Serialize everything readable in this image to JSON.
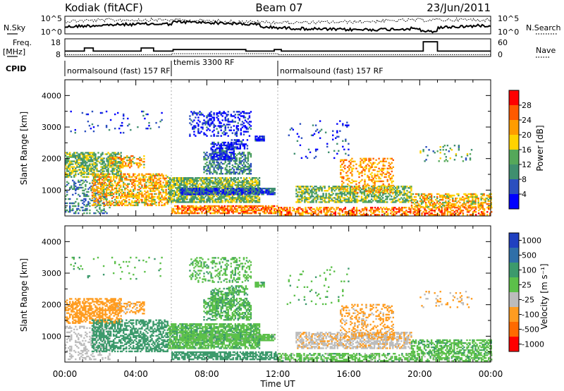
{
  "header": {
    "station": "Kodiak (fitACF)",
    "beam": "Beam 07",
    "date": "23/Jun/2011"
  },
  "noise_panel": {
    "left_label": "N.Sky",
    "right_label": "N.Search",
    "left_ticks": [
      "10^5",
      "10^0"
    ],
    "right_ticks": [
      "10^5",
      "10^0"
    ]
  },
  "freq_panel": {
    "left_label": "Freq.",
    "left_unit": "[MHz]",
    "right_label": "Nave",
    "left_ticks": [
      "18",
      "8"
    ],
    "right_ticks": [
      "60",
      "0"
    ],
    "freq_steps": [
      [
        0,
        11
      ],
      [
        1.1,
        13
      ],
      [
        1.6,
        11
      ],
      [
        4.3,
        13
      ],
      [
        5.0,
        11
      ],
      [
        6.1,
        12
      ],
      [
        10.2,
        11
      ],
      [
        11.8,
        12
      ],
      [
        12.2,
        11
      ],
      [
        15.0,
        11
      ],
      [
        20.2,
        17
      ],
      [
        21.0,
        11
      ],
      [
        24,
        11
      ]
    ],
    "nave_steps": [
      [
        0,
        4
      ],
      [
        6.0,
        8
      ],
      [
        12.0,
        4
      ],
      [
        24,
        4
      ]
    ]
  },
  "cpid": {
    "label": "CPID",
    "segments": [
      {
        "start": 0,
        "end": 6,
        "name": "normalsound (fast) 157 RF"
      },
      {
        "start": 6,
        "end": 12,
        "name": "themis 3300 RF"
      },
      {
        "start": 12,
        "end": 24,
        "name": "normalsound (fast) 157 RF"
      }
    ]
  },
  "colors": {
    "power": [
      "#0000ff",
      "#2b4fbf",
      "#3f8f6f",
      "#55a85a",
      "#ffd200",
      "#ff9c00",
      "#ff5a00",
      "#ff0000"
    ],
    "velocity": [
      "#2040c0",
      "#2f6fa8",
      "#3c9a6c",
      "#5cc04a",
      "#bcbcbc",
      "#ff9c20",
      "#ff6a00",
      "#ff0000"
    ]
  },
  "chart_data": [
    {
      "type": "heatmap",
      "xlabel": "",
      "ylabel": "Slant Range [km]",
      "colorbar_label": "Power [dB]",
      "colorbar_ticks": [
        "28",
        "24",
        "20",
        "16",
        "12",
        "8",
        "4"
      ],
      "colorbar_range": [
        0,
        32
      ],
      "x_range_ut_hours": [
        0,
        24
      ],
      "y_range_km": [
        180,
        4500
      ],
      "y_ticks": [
        "1000",
        "2000",
        "3000",
        "4000"
      ]
    },
    {
      "type": "heatmap",
      "xlabel": "Time UT",
      "ylabel": "Slant Range [km]",
      "colorbar_label": "Velocity [m s⁻¹]",
      "colorbar_ticks": [
        "1000",
        "500",
        "100",
        "25",
        "-25",
        "-100",
        "-500",
        "-1000"
      ],
      "x_range_ut_hours": [
        0,
        24
      ],
      "y_range_km": [
        180,
        4500
      ],
      "y_ticks": [
        "1000",
        "2000",
        "3000",
        "4000"
      ],
      "x_ticks": [
        "00:00",
        "04:00",
        "08:00",
        "12:00",
        "16:00",
        "20:00",
        "00:00"
      ]
    }
  ],
  "scatter_regions": [
    {
      "t0": 0.0,
      "t1": 3.2,
      "r0": 1400,
      "r1": 2200,
      "density": 0.6,
      "power": 14,
      "vel": -250
    },
    {
      "t0": 0.0,
      "t1": 2.5,
      "r0": 250,
      "r1": 1300,
      "density": 0.28,
      "power": 10,
      "vel": -60
    },
    {
      "t0": 1.5,
      "t1": 5.8,
      "r0": 500,
      "r1": 1500,
      "density": 0.55,
      "power": 20,
      "vel": 60
    },
    {
      "t0": 2.5,
      "t1": 4.5,
      "r0": 1700,
      "r1": 2100,
      "density": 0.4,
      "power": 20,
      "vel": -150
    },
    {
      "t0": 5.8,
      "t1": 11.0,
      "r0": 600,
      "r1": 1400,
      "density": 0.75,
      "power": 14,
      "vel": 10
    },
    {
      "t0": 6.5,
      "t1": 11.8,
      "r0": 850,
      "r1": 1050,
      "density": 0.85,
      "power": 6,
      "vel": 0
    },
    {
      "t0": 7.8,
      "t1": 10.5,
      "r0": 1500,
      "r1": 2200,
      "density": 0.55,
      "power": 10,
      "vel": 20
    },
    {
      "t0": 8.2,
      "t1": 9.5,
      "r0": 1950,
      "r1": 2500,
      "density": 0.6,
      "power": 4,
      "vel": 20
    },
    {
      "t0": 9.2,
      "t1": 10.3,
      "r0": 2300,
      "r1": 2600,
      "density": 0.5,
      "power": 3,
      "vel": 10
    },
    {
      "t0": 7.0,
      "t1": 10.5,
      "r0": 2700,
      "r1": 3500,
      "density": 0.3,
      "power": 3,
      "vel": 5
    },
    {
      "t0": 10.7,
      "t1": 11.2,
      "r0": 2550,
      "r1": 2700,
      "density": 0.9,
      "power": 3,
      "vel": 10
    },
    {
      "t0": 6.0,
      "t1": 12.0,
      "r0": 250,
      "r1": 500,
      "density": 0.7,
      "power": 24,
      "vel": 60
    },
    {
      "t0": 12.0,
      "t1": 24.0,
      "r0": 200,
      "r1": 450,
      "density": 0.55,
      "power": 24,
      "vel": 0
    },
    {
      "t0": 13.0,
      "t1": 19.5,
      "r0": 600,
      "r1": 1100,
      "density": 0.6,
      "power": 14,
      "vel": -80
    },
    {
      "t0": 15.5,
      "t1": 18.5,
      "r0": 900,
      "r1": 2000,
      "density": 0.3,
      "power": 22,
      "vel": -150
    },
    {
      "t0": 19.5,
      "t1": 24.0,
      "r0": 450,
      "r1": 900,
      "density": 0.55,
      "power": 20,
      "vel": 10
    },
    {
      "t0": 20.0,
      "t1": 23.0,
      "r0": 1900,
      "r1": 2400,
      "density": 0.12,
      "power": 12,
      "vel": -120
    },
    {
      "t0": 12.5,
      "t1": 16.0,
      "r0": 2000,
      "r1": 3200,
      "density": 0.05,
      "power": 4,
      "vel": 10
    },
    {
      "t0": 0.3,
      "t1": 5.5,
      "r0": 2800,
      "r1": 3500,
      "density": 0.04,
      "power": 4,
      "vel": 10
    }
  ]
}
